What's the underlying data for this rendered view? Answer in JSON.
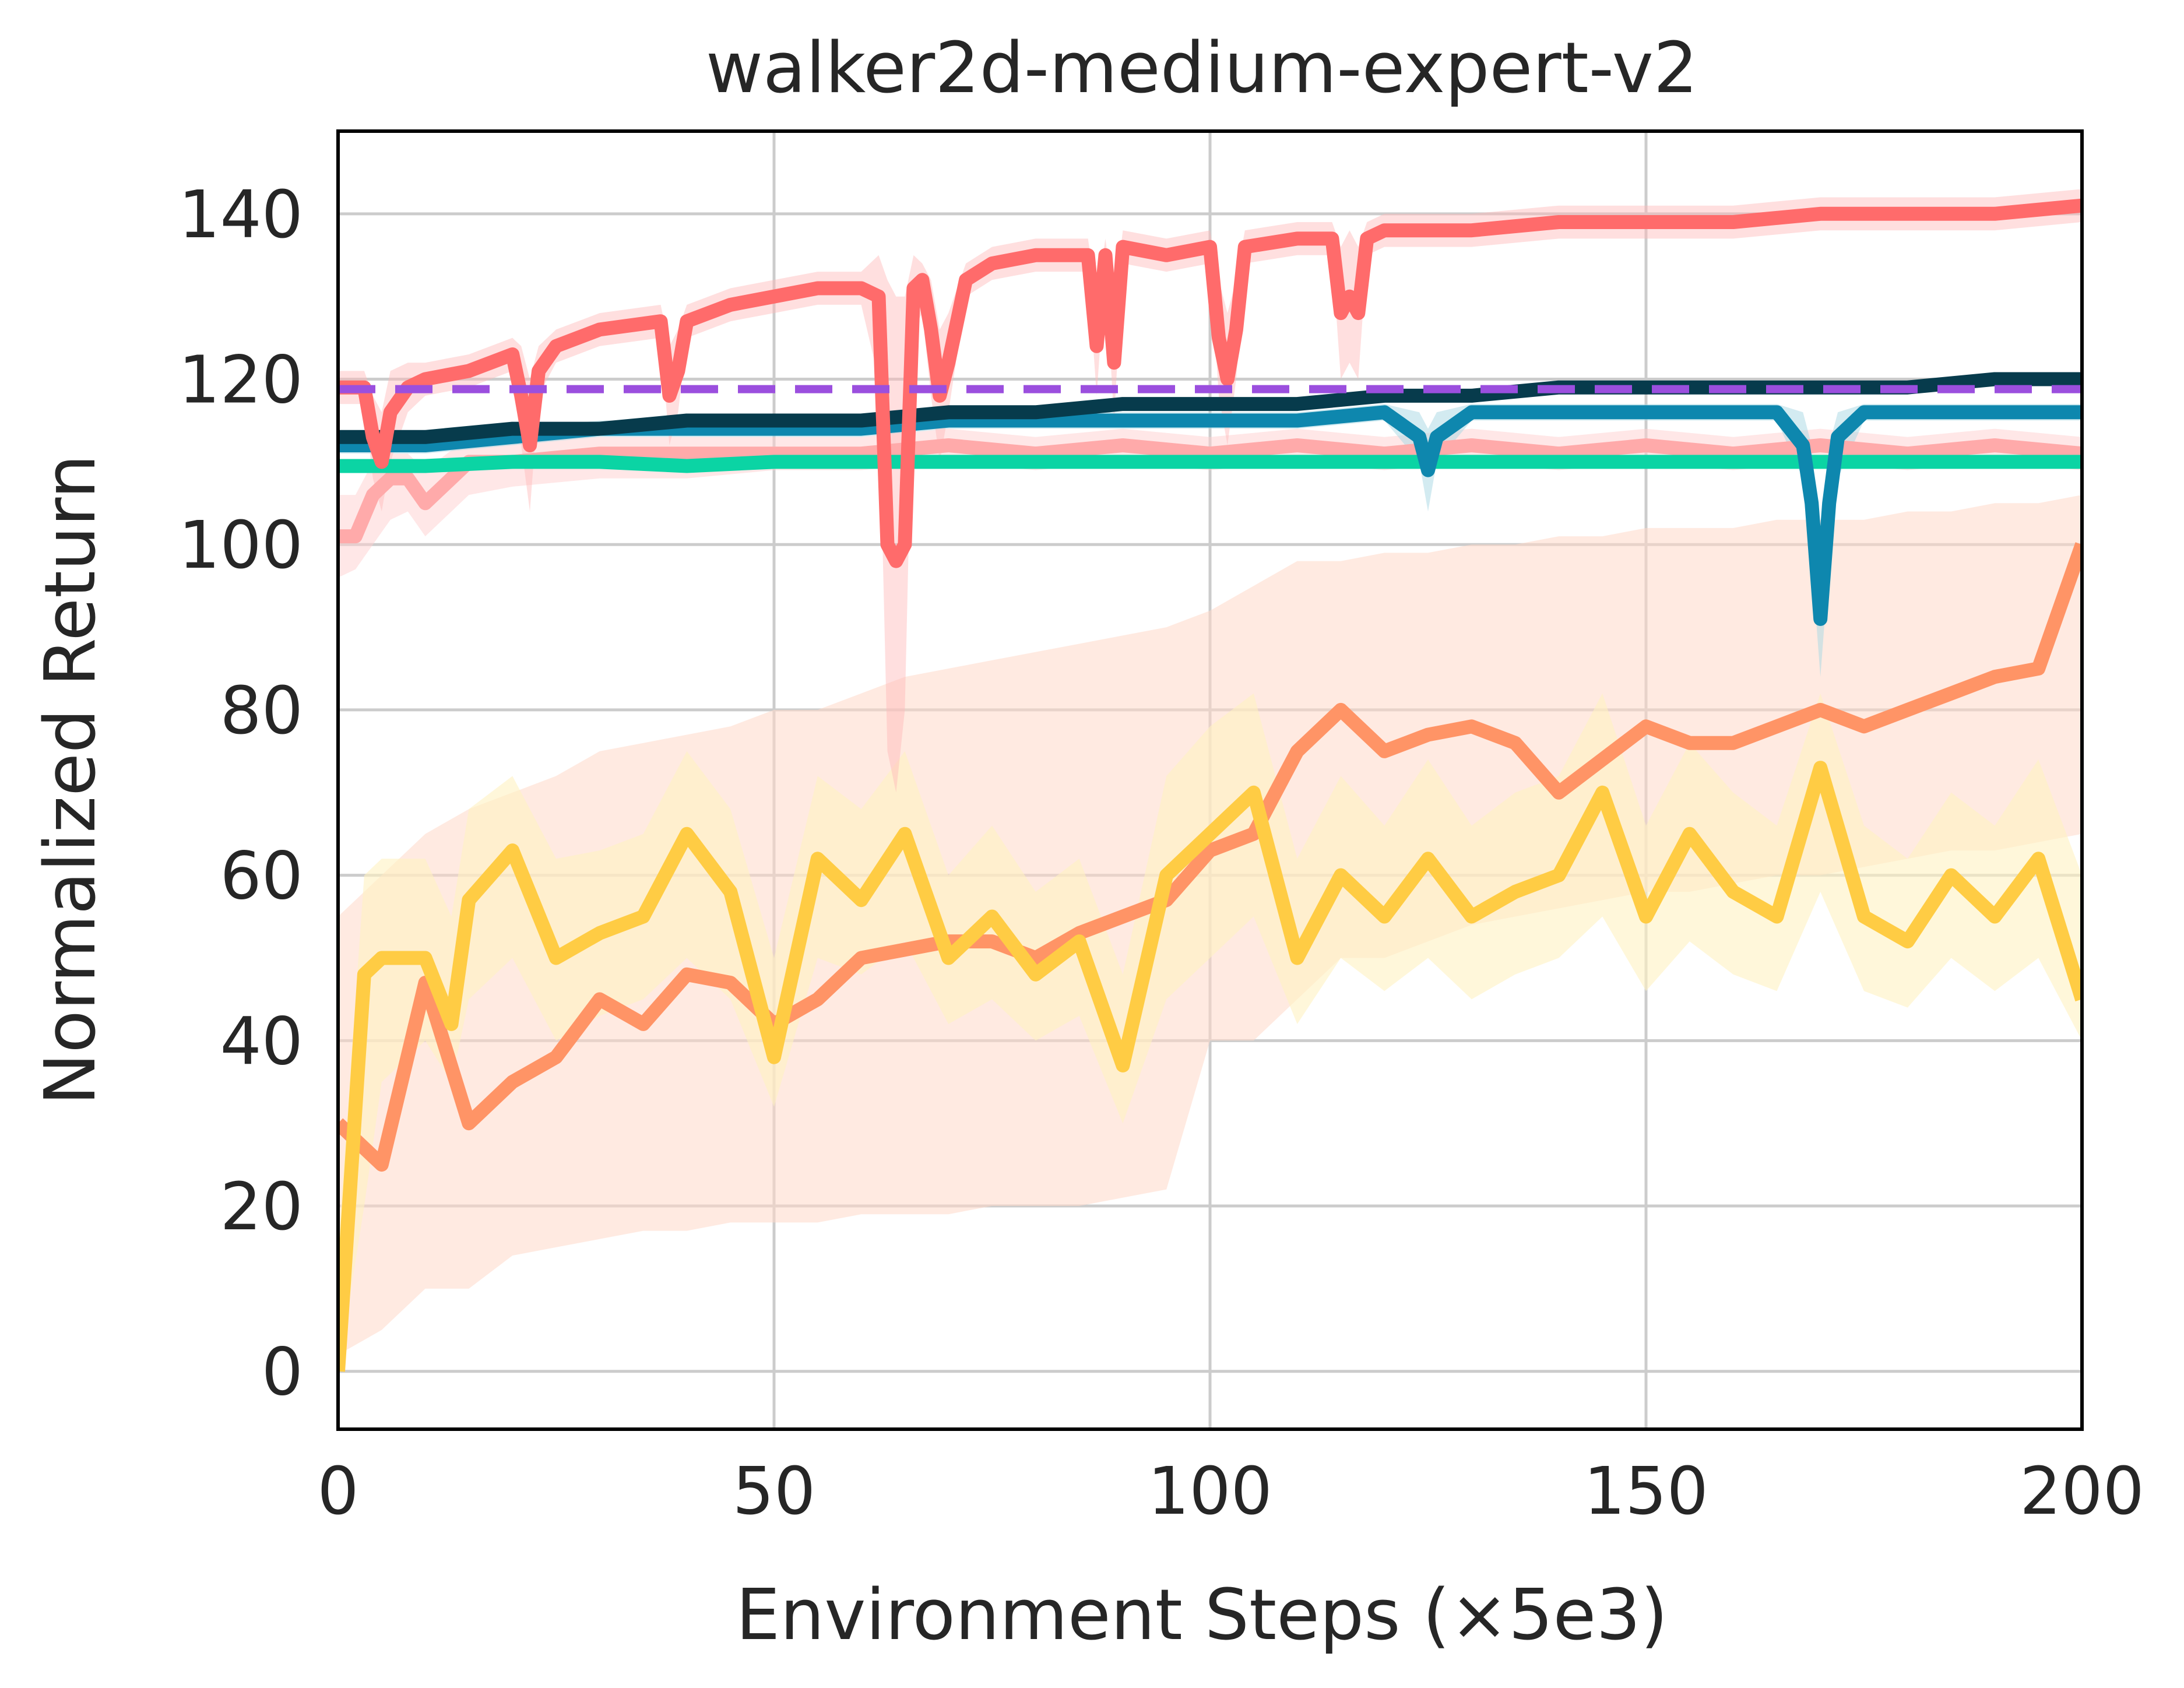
{
  "chart_data": {
    "type": "line",
    "title": "walker2d-medium-expert-v2",
    "xlabel": "Environment Steps (×5e3)",
    "ylabel": "Normalized Return",
    "xlim": [
      0,
      200
    ],
    "ylim": [
      -7,
      150
    ],
    "xticks": [
      0,
      50,
      100,
      150,
      200
    ],
    "yticks": [
      0,
      20,
      40,
      60,
      80,
      100,
      120,
      140
    ],
    "grid": true,
    "legend": "none",
    "reference_line": {
      "y": 118.8,
      "style": "dashed",
      "color": "#9b4fde"
    },
    "series": [
      {
        "color": "#ff9466",
        "band_color": "#ffd9c9",
        "band_opacity": 0.55,
        "x": [
          0,
          5,
          10,
          15,
          20,
          25,
          30,
          35,
          40,
          45,
          50,
          55,
          60,
          65,
          70,
          75,
          80,
          85,
          90,
          95,
          100,
          105,
          110,
          115,
          120,
          125,
          130,
          135,
          140,
          145,
          150,
          155,
          160,
          165,
          170,
          175,
          180,
          185,
          190,
          195,
          200
        ],
        "y": [
          30,
          25,
          47,
          30,
          35,
          38,
          45,
          42,
          48,
          47,
          42,
          45,
          50,
          51,
          52,
          52,
          50,
          53,
          55,
          57,
          63,
          65,
          75,
          80,
          75,
          77,
          78,
          76,
          70,
          74,
          78,
          76,
          76,
          78,
          80,
          78,
          80,
          82,
          84,
          85,
          100
        ],
        "lower": [
          2,
          5,
          10,
          10,
          14,
          15,
          16,
          17,
          17,
          18,
          18,
          18,
          19,
          19,
          19,
          20,
          20,
          20,
          21,
          22,
          40,
          40,
          45,
          50,
          50,
          52,
          54,
          55,
          56,
          57,
          58,
          58,
          59,
          60,
          60,
          61,
          62,
          63,
          63,
          64,
          65
        ],
        "upper": [
          55,
          60,
          65,
          68,
          70,
          72,
          75,
          76,
          77,
          78,
          80,
          80,
          82,
          84,
          85,
          86,
          87,
          88,
          89,
          90,
          92,
          95,
          98,
          98,
          99,
          99,
          100,
          100,
          101,
          101,
          102,
          102,
          102,
          103,
          103,
          103,
          104,
          104,
          105,
          105,
          106
        ]
      },
      {
        "color": "#ffcc44",
        "band_color": "#fff1c2",
        "band_opacity": 0.6,
        "x": [
          0,
          3,
          5,
          10,
          13,
          15,
          20,
          25,
          30,
          35,
          40,
          45,
          50,
          55,
          60,
          65,
          70,
          75,
          80,
          85,
          90,
          95,
          100,
          105,
          110,
          115,
          120,
          125,
          130,
          135,
          140,
          145,
          150,
          155,
          160,
          165,
          170,
          175,
          180,
          185,
          190,
          195,
          200
        ],
        "y": [
          0,
          48,
          50,
          50,
          42,
          57,
          63,
          50,
          53,
          55,
          65,
          58,
          38,
          62,
          57,
          65,
          50,
          55,
          48,
          52,
          37,
          60,
          65,
          70,
          50,
          60,
          55,
          62,
          55,
          58,
          60,
          70,
          55,
          65,
          58,
          55,
          73,
          55,
          52,
          60,
          55,
          62,
          45
        ],
        "lower": [
          0,
          20,
          35,
          40,
          35,
          45,
          50,
          40,
          43,
          45,
          50,
          45,
          32,
          50,
          48,
          52,
          42,
          45,
          40,
          43,
          30,
          45,
          50,
          55,
          42,
          50,
          46,
          50,
          45,
          48,
          50,
          55,
          46,
          52,
          48,
          46,
          58,
          46,
          44,
          50,
          46,
          50,
          40
        ],
        "upper": [
          15,
          60,
          62,
          62,
          55,
          68,
          72,
          62,
          63,
          65,
          75,
          68,
          50,
          72,
          68,
          75,
          60,
          66,
          58,
          62,
          48,
          72,
          78,
          82,
          62,
          72,
          66,
          74,
          66,
          70,
          72,
          82,
          66,
          76,
          70,
          66,
          82,
          66,
          62,
          70,
          66,
          74,
          60
        ]
      },
      {
        "color": "#ffaaaa",
        "band_color": "#ffd0d0",
        "band_opacity": 0.5,
        "x": [
          0,
          2,
          4,
          6,
          8,
          10,
          15,
          20,
          30,
          40,
          50,
          60,
          70,
          80,
          90,
          100,
          110,
          120,
          130,
          140,
          150,
          160,
          170,
          180,
          190,
          200
        ],
        "y": [
          101,
          101,
          106,
          108,
          108,
          105,
          110,
          110,
          111,
          111,
          111,
          111,
          112,
          111,
          112,
          111,
          112,
          111,
          112,
          111,
          112,
          111,
          112,
          111,
          112,
          111
        ],
        "lower": [
          96,
          97,
          100,
          103,
          104,
          101,
          106,
          107,
          108,
          108,
          109,
          109,
          110,
          109,
          110,
          109,
          110,
          109,
          110,
          109,
          110,
          109,
          110,
          109,
          110,
          109
        ],
        "upper": [
          106,
          106,
          110,
          111,
          111,
          109,
          113,
          113,
          113,
          113,
          113,
          113,
          114,
          113,
          114,
          113,
          114,
          113,
          114,
          113,
          114,
          113,
          114,
          113,
          114,
          113
        ]
      },
      {
        "color": "#0bd4a4",
        "x": [
          0,
          10,
          20,
          30,
          40,
          50,
          60,
          70,
          80,
          90,
          100,
          110,
          120,
          130,
          140,
          150,
          160,
          170,
          180,
          190,
          200
        ],
        "y": [
          109.5,
          109.5,
          110,
          110,
          109.5,
          110,
          110,
          110,
          110,
          110,
          110,
          110,
          110,
          110,
          110,
          110,
          110,
          110,
          110,
          110,
          110
        ]
      },
      {
        "color": "#0e87ae",
        "band_color": "#a8d8e4",
        "band_opacity": 0.5,
        "x": [
          0,
          10,
          20,
          30,
          40,
          50,
          60,
          70,
          80,
          90,
          100,
          110,
          120,
          124,
          125,
          126,
          130,
          140,
          150,
          160,
          165,
          168,
          169,
          170,
          171,
          172,
          175,
          180,
          190,
          200
        ],
        "y": [
          112,
          112,
          113,
          114,
          114,
          114,
          114,
          115,
          115,
          115,
          115,
          115,
          116,
          113,
          109,
          113,
          116,
          116,
          116,
          116,
          116,
          112,
          105,
          91,
          105,
          113,
          116,
          116,
          116,
          116
        ],
        "lower": [
          111,
          111,
          112,
          113,
          113,
          113,
          113,
          114,
          114,
          114,
          114,
          114,
          115,
          110,
          104,
          110,
          115,
          115,
          115,
          115,
          115,
          108,
          98,
          84,
          98,
          108,
          115,
          115,
          115,
          115
        ],
        "upper": [
          113,
          113,
          114,
          115,
          115,
          115,
          115,
          116,
          116,
          116,
          116,
          116,
          117,
          116,
          114,
          116,
          117,
          117,
          117,
          117,
          117,
          116,
          112,
          98,
          112,
          116,
          117,
          117,
          117,
          117
        ]
      },
      {
        "color": "#073b4c",
        "x": [
          0,
          10,
          20,
          30,
          40,
          50,
          60,
          70,
          80,
          90,
          100,
          110,
          120,
          130,
          140,
          150,
          160,
          170,
          180,
          190,
          200
        ],
        "y": [
          113,
          113,
          114,
          114,
          115,
          115,
          115,
          116,
          116,
          117,
          117,
          117,
          118,
          118,
          119,
          119,
          119,
          119,
          119,
          120,
          120
        ]
      },
      {
        "color": "#ff6b6b",
        "band_color": "#ffb8b8",
        "band_opacity": 0.45,
        "x": [
          0,
          3,
          4,
          5,
          6,
          8,
          10,
          15,
          20,
          21,
          22,
          23,
          25,
          30,
          37,
          38,
          39,
          40,
          45,
          50,
          55,
          60,
          62,
          63,
          64,
          65,
          66,
          67,
          68,
          69,
          70,
          72,
          75,
          80,
          86,
          87,
          88,
          89,
          90,
          95,
          100,
          101,
          102,
          103,
          104,
          110,
          114,
          115,
          116,
          117,
          118,
          120,
          130,
          140,
          150,
          160,
          170,
          180,
          190,
          200
        ],
        "y": [
          119,
          119,
          113,
          110,
          116,
          119,
          120,
          121,
          123,
          118,
          112,
          121,
          124,
          126,
          127,
          118,
          121,
          127,
          129,
          130,
          131,
          131,
          130,
          100,
          98,
          100,
          131,
          132,
          126,
          118,
          122,
          132,
          134,
          135,
          135,
          124,
          135,
          122,
          136,
          135,
          136,
          125,
          120,
          126,
          136,
          137,
          137,
          128,
          130,
          128,
          137,
          138,
          138,
          139,
          139,
          139,
          140,
          140,
          140,
          141
        ],
        "lower": [
          117,
          117,
          108,
          104,
          110,
          116,
          118,
          119,
          121,
          112,
          104,
          118,
          122,
          124,
          125,
          112,
          116,
          125,
          127,
          128,
          129,
          129,
          120,
          75,
          70,
          80,
          126,
          128,
          118,
          110,
          116,
          130,
          132,
          133,
          133,
          118,
          133,
          115,
          134,
          133,
          134,
          118,
          112,
          120,
          134,
          135,
          135,
          120,
          122,
          120,
          135,
          136,
          136,
          137,
          137,
          137,
          138,
          138,
          138,
          139
        ],
        "upper": [
          121,
          121,
          118,
          116,
          121,
          122,
          122,
          123,
          125,
          124,
          120,
          124,
          126,
          128,
          129,
          124,
          126,
          129,
          131,
          132,
          133,
          133,
          135,
          132,
          130,
          130,
          135,
          134,
          132,
          126,
          128,
          134,
          136,
          137,
          137,
          130,
          137,
          129,
          138,
          137,
          138,
          132,
          128,
          132,
          138,
          139,
          139,
          136,
          138,
          136,
          139,
          140,
          140,
          141,
          141,
          141,
          142,
          142,
          142,
          143
        ]
      }
    ]
  }
}
